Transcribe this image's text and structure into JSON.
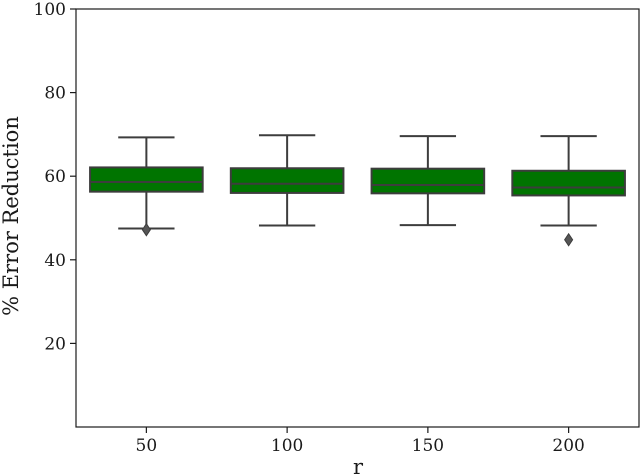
{
  "chart_data": {
    "type": "box",
    "xlabel": "r",
    "ylabel": "% Error Reduction",
    "ylim": [
      0,
      100
    ],
    "yticks": [
      20,
      40,
      60,
      80,
      100
    ],
    "categories": [
      "50",
      "100",
      "150",
      "200"
    ],
    "boxes": [
      {
        "category": "50",
        "whisker_low": 47.5,
        "q1": 56.3,
        "median": 58.6,
        "q3": 62.1,
        "whisker_high": 69.3,
        "outliers": [
          47.2
        ]
      },
      {
        "category": "100",
        "whisker_low": 48.2,
        "q1": 56.0,
        "median": 58.2,
        "q3": 61.9,
        "whisker_high": 69.8,
        "outliers": []
      },
      {
        "category": "150",
        "whisker_low": 48.3,
        "q1": 55.9,
        "median": 57.9,
        "q3": 61.8,
        "whisker_high": 69.6,
        "outliers": []
      },
      {
        "category": "200",
        "whisker_low": 48.2,
        "q1": 55.4,
        "median": 57.3,
        "q3": 61.3,
        "whisker_high": 69.6,
        "outliers": [
          44.8
        ]
      }
    ],
    "box_color": "#007400",
    "line_color": "#3d3d3d",
    "grid": false,
    "legend": "none"
  }
}
